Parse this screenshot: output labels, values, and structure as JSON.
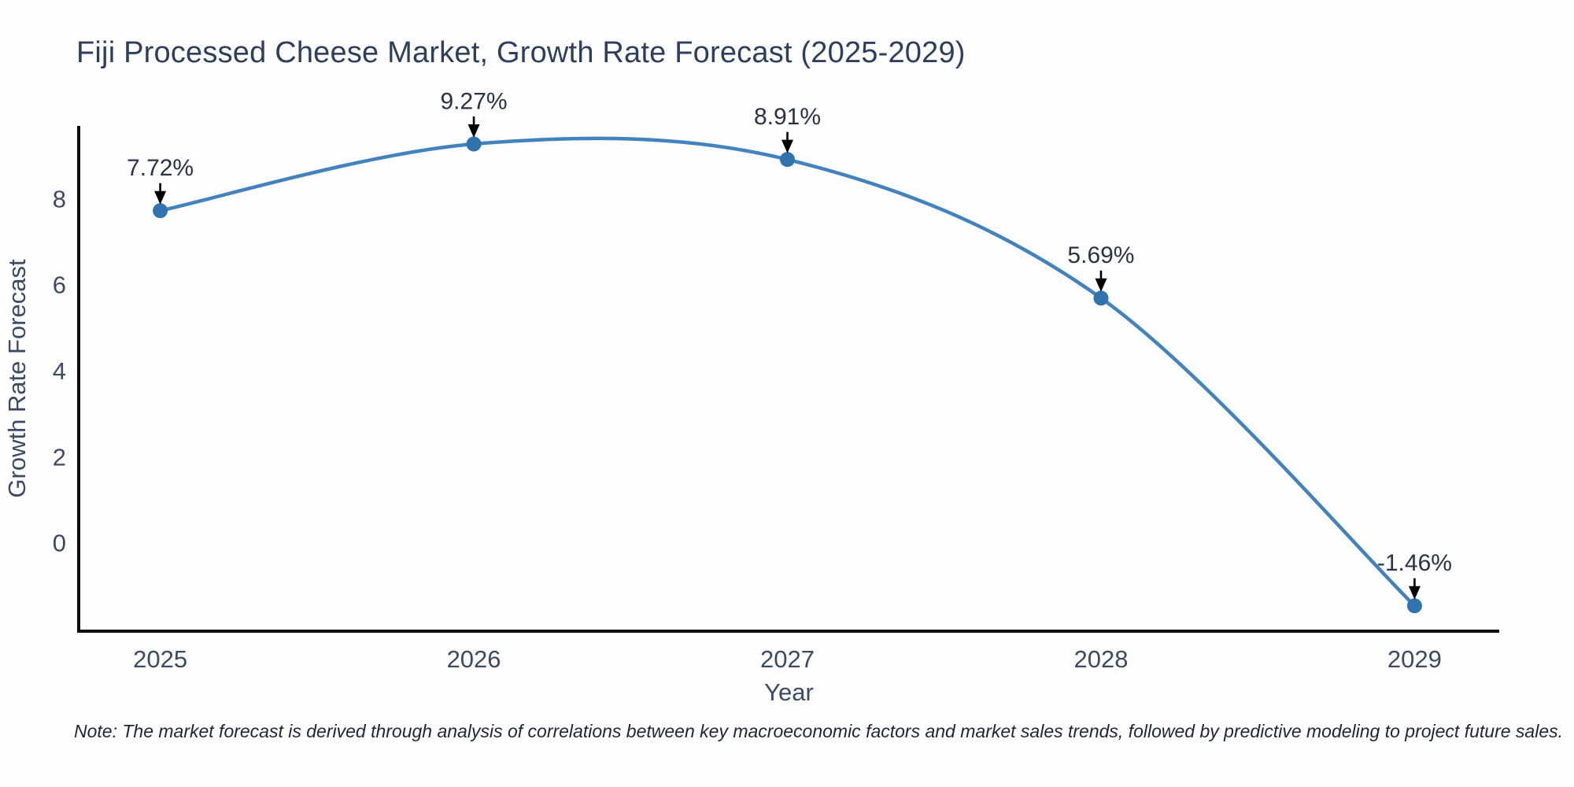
{
  "figure": {
    "note": "Note: The market forecast is derived through analysis of correlations between key macroeconomic factors and market sales trends, followed by predictive modeling to project future sales."
  },
  "chart_data": {
    "type": "line",
    "title": "Fiji Processed Cheese Market, Growth Rate Forecast (2025-2029)",
    "xlabel": "Year",
    "ylabel": "Growth Rate Forecast",
    "x": [
      2025,
      2026,
      2027,
      2028,
      2029
    ],
    "series": [
      {
        "name": "Growth Rate Forecast",
        "values": [
          7.72,
          9.27,
          8.91,
          5.69,
          -1.46
        ]
      }
    ],
    "point_labels": [
      "7.72%",
      "9.27%",
      "8.91%",
      "5.69%",
      "-1.46%"
    ],
    "xticks": [
      "2025",
      "2026",
      "2027",
      "2028",
      "2029"
    ],
    "yticks": [
      0,
      2,
      4,
      6,
      8
    ],
    "xlim": [
      2024.74,
      2029.27
    ],
    "ylim": [
      -2.05,
      9.69
    ],
    "grid": false,
    "legend": "none",
    "line_style": "spline",
    "annotation_style": "value label above each point with black down arrow",
    "colors": {
      "line": "#4383bd",
      "marker": "#2f74ae",
      "arrow": "#000000",
      "axis": "#0d0d0d",
      "title_text": "#2e3f5e",
      "tick_text": "#3c4a63",
      "annotation_text": "#2a3345",
      "note_text": "#1f2633",
      "background": "#fdfdfd"
    }
  }
}
